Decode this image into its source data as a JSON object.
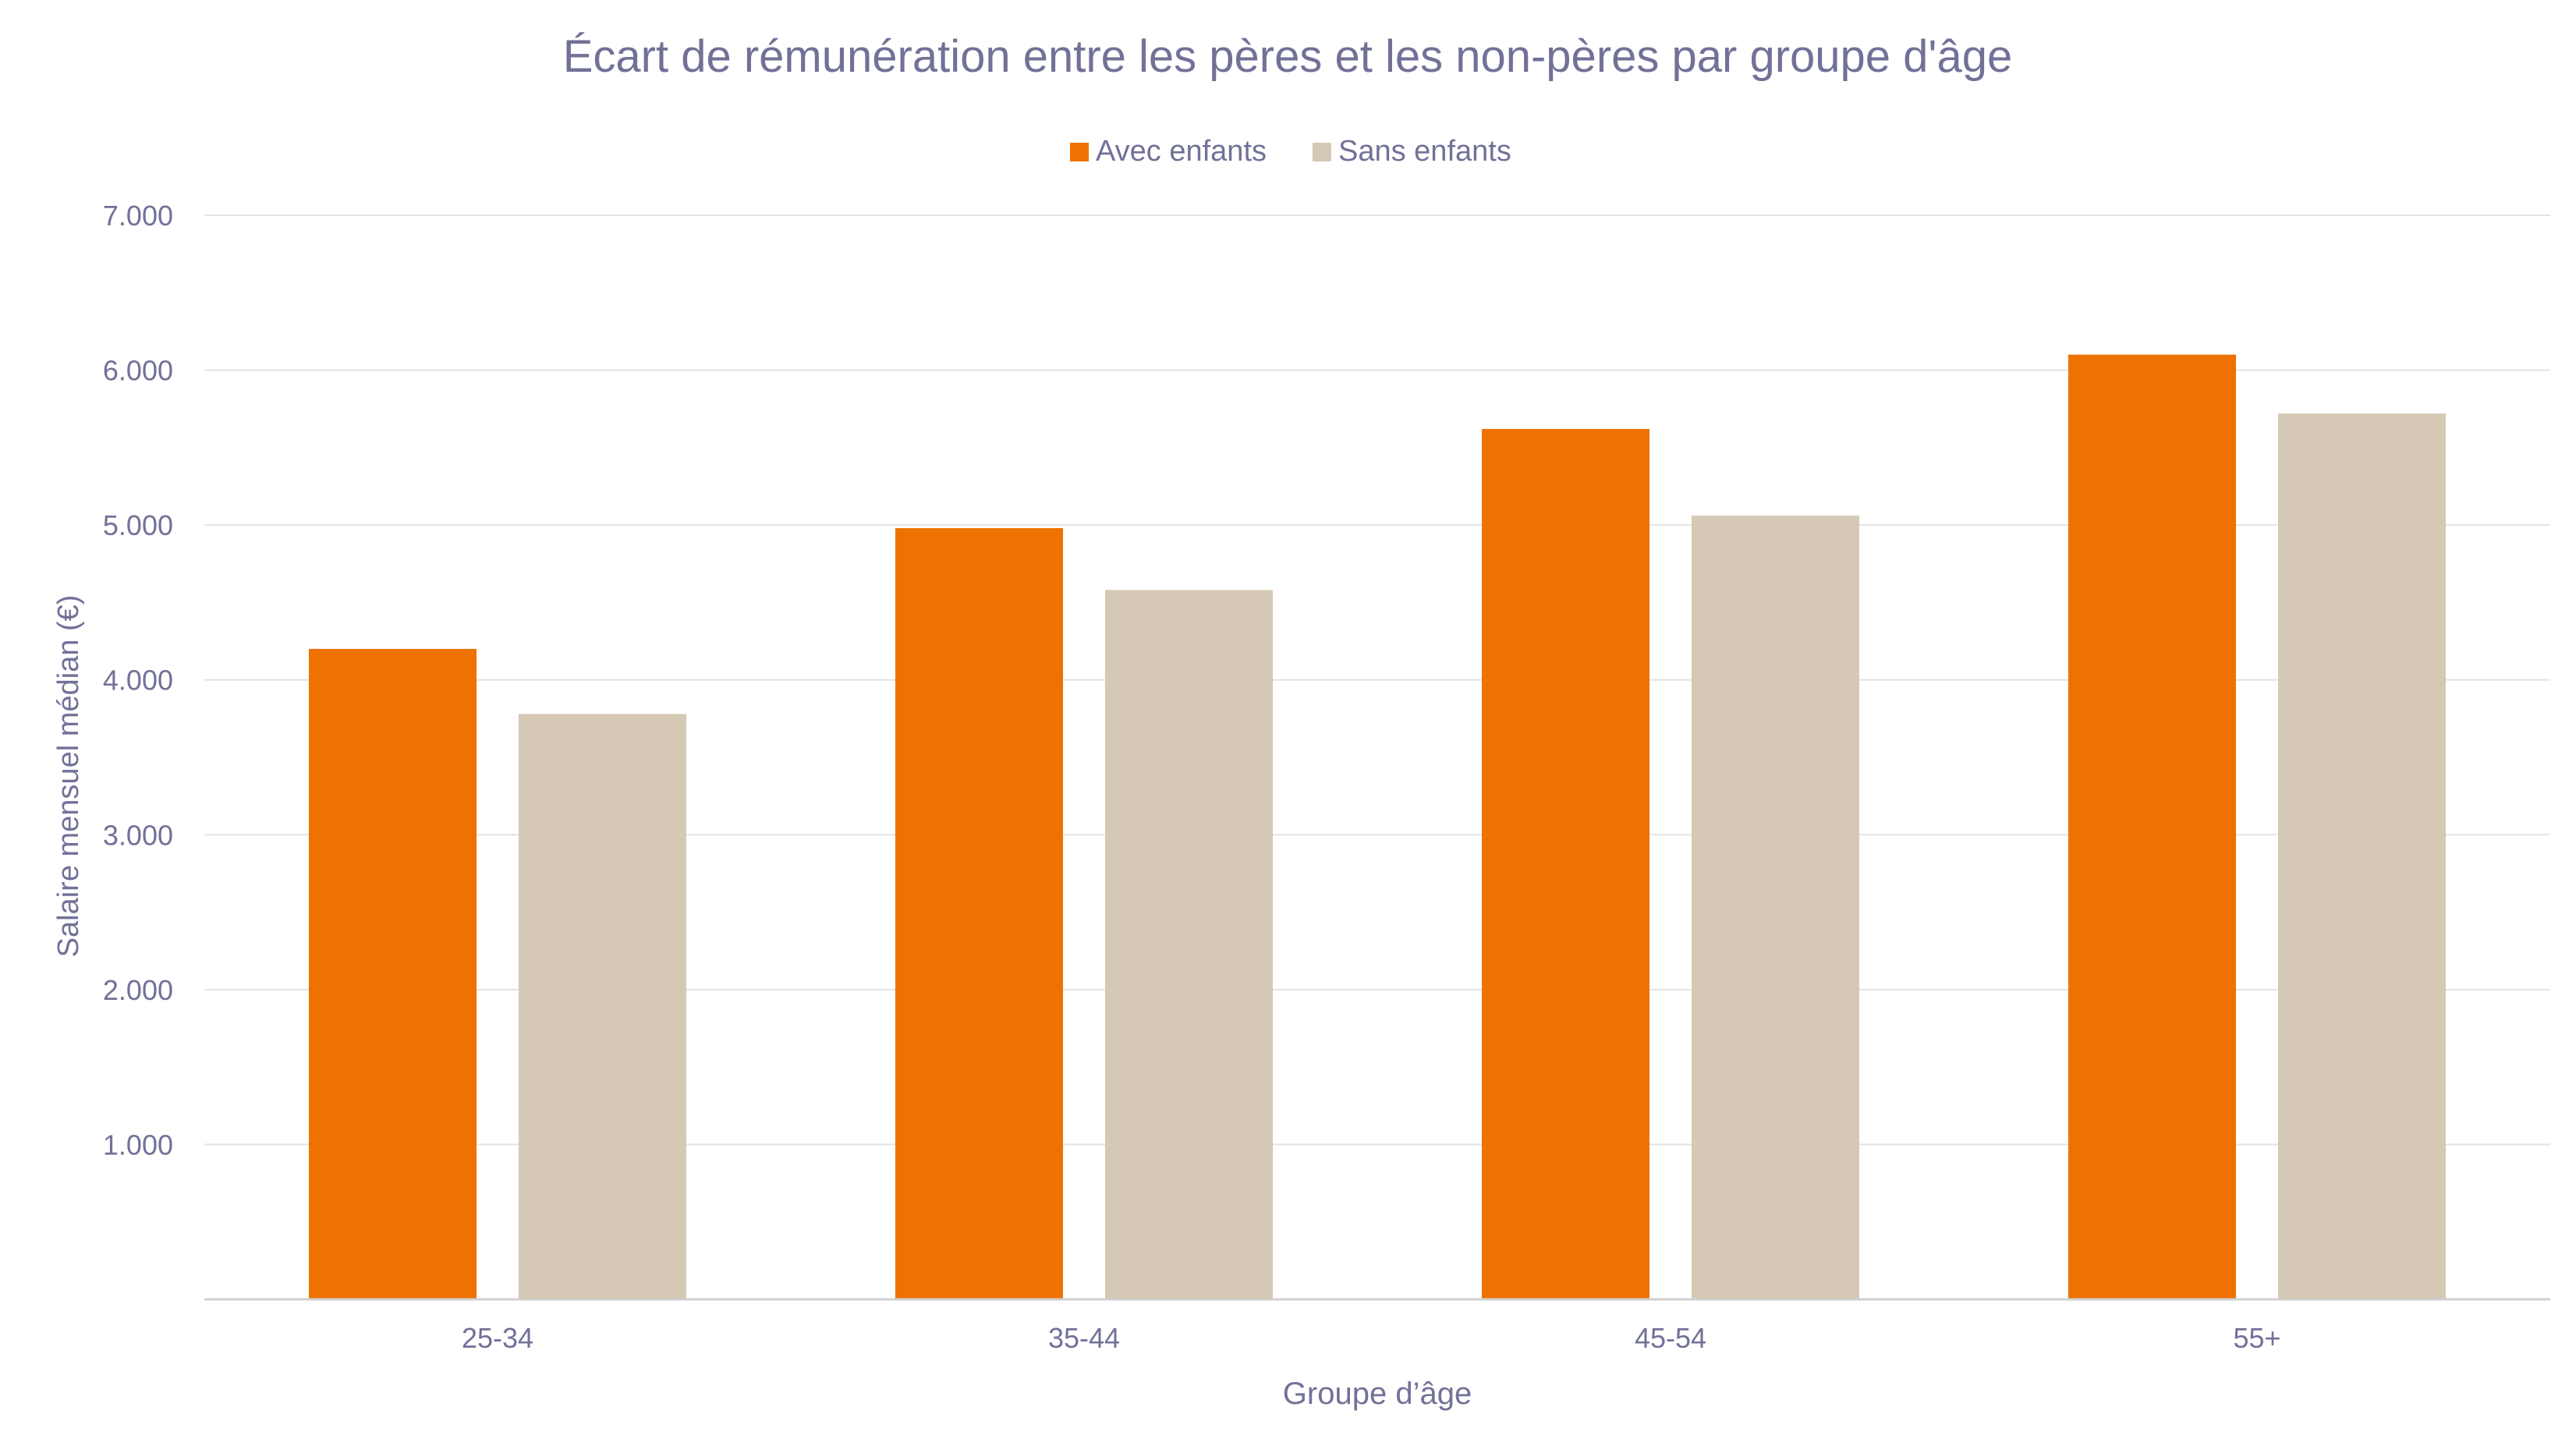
{
  "chart_data": {
    "type": "bar",
    "title": "Écart de rémunération entre les pères et les non-pères par groupe d'âge",
    "xlabel": "Groupe d’âge",
    "ylabel": "Salaire mensuel médian (€)",
    "categories": [
      "25-34",
      "35-44",
      "45-54",
      "55+"
    ],
    "series": [
      {
        "name": "Avec enfants",
        "color": "#EE7202",
        "values": [
          4200,
          4980,
          5620,
          6100
        ]
      },
      {
        "name": "Sans enfants",
        "color": "#D5C9B5",
        "values": [
          3780,
          4580,
          5060,
          5720
        ]
      }
    ],
    "ylim": [
      0,
      7000
    ],
    "yticks": [
      1000,
      2000,
      3000,
      4000,
      5000,
      6000,
      7000
    ],
    "ytick_labels": [
      "1.000",
      "2.000",
      "3.000",
      "4.000",
      "5.000",
      "6.000",
      "7.000"
    ],
    "grid": true,
    "legend_position": "top-center"
  }
}
